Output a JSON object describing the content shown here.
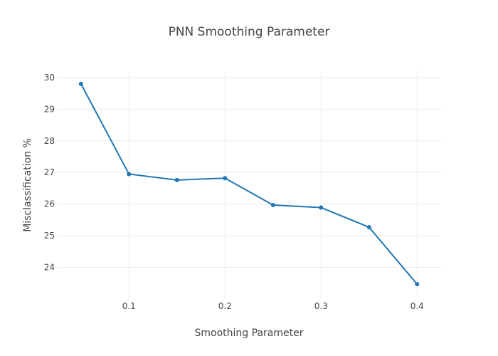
{
  "chart_data": {
    "type": "line",
    "title": "PNN Smoothing Parameter",
    "xlabel": "Smoothing Parameter",
    "ylabel": "Misclassification %",
    "x": [
      0.05,
      0.1,
      0.15,
      0.2,
      0.25,
      0.3,
      0.35,
      0.4
    ],
    "series": [
      {
        "values": [
          29.8,
          26.95,
          26.76,
          26.82,
          25.97,
          25.89,
          25.27,
          23.47
        ]
      }
    ],
    "xlim": [
      0.025,
      0.425
    ],
    "ylim": [
      23.0,
      30.2
    ],
    "xticks": [
      0.1,
      0.2,
      0.3,
      0.4
    ],
    "xtick_labels": [
      "0.1",
      "0.2",
      "0.3",
      "0.4"
    ],
    "yticks": [
      24,
      25,
      26,
      27,
      28,
      29,
      30
    ],
    "ytick_labels": [
      "24",
      "25",
      "26",
      "27",
      "28",
      "29",
      "30"
    ],
    "grid": true,
    "legend": "none",
    "colors": {
      "line": "#1f77b4",
      "grid": "#eeeeee",
      "text": "#444444"
    }
  }
}
